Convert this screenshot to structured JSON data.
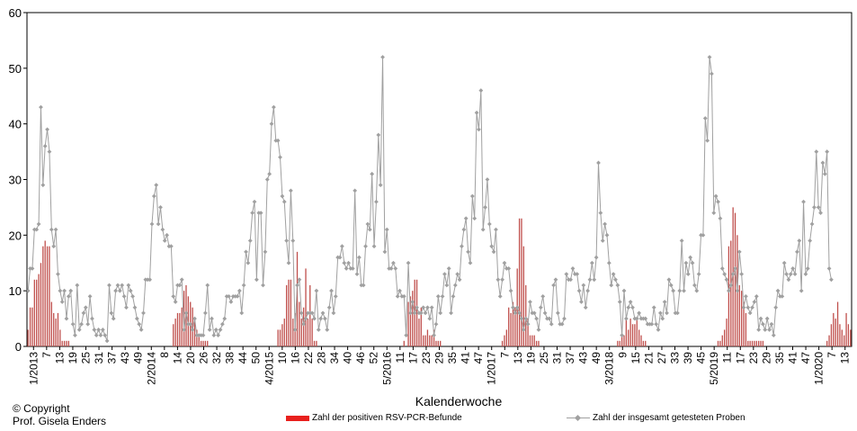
{
  "chart_data": {
    "type": "bar+line",
    "xlabel": "Kalenderwoche",
    "ylabel": "",
    "ylim": [
      0,
      60
    ],
    "yticks": [
      0,
      10,
      20,
      30,
      40,
      50,
      60
    ],
    "x_tick_labels": [
      "1/2013",
      "7",
      "13",
      "19",
      "25",
      "31",
      "37",
      "43",
      "49",
      "2/2014",
      "8",
      "14",
      "20",
      "26",
      "32",
      "38",
      "44",
      "50",
      "4/2015",
      "10",
      "16",
      "22",
      "28",
      "34",
      "40",
      "46",
      "52",
      "5/2016",
      "11",
      "17",
      "23",
      "29",
      "35",
      "41",
      "47",
      "1/2017",
      "7",
      "13",
      "19",
      "25",
      "31",
      "37",
      "43",
      "49",
      "3/2018",
      "9",
      "15",
      "21",
      "27",
      "33",
      "39",
      "45",
      "5/2019",
      "11",
      "17",
      "23",
      "29",
      "35",
      "41",
      "47",
      "1/2020",
      "7",
      "13"
    ],
    "grid": false,
    "legend_placement": "bottom",
    "series": [
      {
        "name": "Zahl der positiven RSV-PCR-Befunde",
        "type": "bar",
        "color": "#c0504d",
        "values": [
          3,
          7,
          7,
          12,
          12,
          13,
          15,
          18,
          19,
          18,
          18,
          8,
          6,
          5,
          6,
          3,
          1,
          1,
          1,
          1,
          0,
          0,
          0,
          0,
          0,
          0,
          0,
          0,
          0,
          0,
          0,
          0,
          0,
          0,
          0,
          0,
          0,
          0,
          0,
          0,
          0,
          0,
          0,
          0,
          0,
          0,
          0,
          0,
          0,
          0,
          0,
          0,
          0,
          0,
          0,
          0,
          0,
          0,
          0,
          0,
          0,
          0,
          0,
          0,
          0,
          0,
          0,
          0,
          4,
          5,
          6,
          6,
          7,
          10,
          11,
          9,
          8,
          7,
          5,
          3,
          2,
          1,
          1,
          1,
          1,
          0,
          0,
          0,
          0,
          0,
          0,
          0,
          0,
          0,
          0,
          0,
          0,
          0,
          0,
          0,
          0,
          0,
          0,
          0,
          0,
          0,
          0,
          0,
          0,
          0,
          0,
          0,
          0,
          0,
          0,
          0,
          0,
          3,
          3,
          4,
          5,
          11,
          12,
          12,
          5,
          6,
          17,
          8,
          5,
          7,
          14,
          5,
          11,
          5,
          1,
          1,
          0,
          0,
          0,
          0,
          0,
          0,
          0,
          0,
          0,
          0,
          0,
          0,
          0,
          0,
          0,
          0,
          0,
          0,
          0,
          0,
          0,
          0,
          0,
          0,
          0,
          0,
          0,
          0,
          0,
          0,
          0,
          0,
          0,
          0,
          0,
          0,
          0,
          0,
          0,
          0,
          1,
          0,
          8,
          9,
          10,
          12,
          12,
          5,
          7,
          2,
          2,
          3,
          2,
          2,
          3,
          1,
          1,
          1,
          0,
          0,
          0,
          0,
          0,
          0,
          0,
          0,
          0,
          0,
          0,
          0,
          0,
          0,
          0,
          0,
          0,
          0,
          0,
          0,
          0,
          0,
          0,
          0,
          0,
          0,
          0,
          0,
          1,
          2,
          3,
          7,
          6,
          8,
          7,
          14,
          23,
          23,
          18,
          11,
          5,
          2,
          2,
          2,
          1,
          1,
          0,
          0,
          0,
          0,
          0,
          0,
          0,
          0,
          0,
          0,
          0,
          0,
          0,
          0,
          0,
          0,
          0,
          0,
          0,
          0,
          0,
          0,
          0,
          0,
          0,
          0,
          0,
          0,
          0,
          0,
          0,
          0,
          0,
          0,
          0,
          0,
          1,
          1,
          2,
          2,
          5,
          3,
          5,
          4,
          4,
          5,
          3,
          2,
          1,
          1,
          0,
          0,
          0,
          0,
          0,
          0,
          0,
          0,
          0,
          0,
          0,
          0,
          0,
          0,
          0,
          0,
          0,
          0,
          0,
          0,
          0,
          0,
          0,
          0,
          0,
          0,
          0,
          0,
          0,
          0,
          0,
          0,
          0,
          1,
          1,
          2,
          3,
          5,
          18,
          19,
          25,
          24,
          20,
          11,
          10,
          8,
          6,
          1,
          1,
          1,
          1,
          1,
          1,
          1,
          1,
          0,
          0,
          0,
          0,
          0,
          0,
          0,
          0,
          0,
          0,
          0,
          0,
          0,
          0,
          0,
          0,
          0,
          0,
          0,
          0,
          0,
          0,
          0,
          0,
          0,
          0,
          0,
          0,
          0,
          1,
          2,
          4,
          6,
          5,
          8,
          4,
          3,
          2,
          6,
          4,
          3
        ]
      },
      {
        "name": "Zahl der insgesamt getesteten Proben",
        "type": "line",
        "color": "#a0a0a0",
        "values": [
          10,
          14,
          14,
          21,
          21,
          22,
          43,
          29,
          36,
          39,
          35,
          21,
          18,
          21,
          13,
          10,
          8,
          10,
          5,
          9,
          10,
          4,
          2,
          11,
          3,
          4,
          6,
          7,
          4,
          9,
          5,
          3,
          2,
          3,
          2,
          3,
          2,
          1,
          11,
          6,
          5,
          10,
          11,
          10,
          11,
          9,
          7,
          11,
          10,
          9,
          7,
          5,
          4,
          3,
          6,
          12,
          12,
          12,
          22,
          27,
          29,
          22,
          25,
          21,
          19,
          20,
          18,
          18,
          9,
          8,
          11,
          11,
          12,
          3,
          6,
          4,
          4,
          3,
          5,
          2,
          2,
          2,
          2,
          6,
          11,
          3,
          5,
          2,
          3,
          2,
          3,
          4,
          5,
          9,
          9,
          8,
          9,
          9,
          9,
          10,
          6,
          11,
          17,
          15,
          19,
          24,
          26,
          12,
          24,
          24,
          11,
          17,
          30,
          31,
          40,
          43,
          37,
          37,
          34,
          27,
          26,
          19,
          15,
          28,
          19,
          3,
          11,
          12,
          6,
          4,
          5,
          6,
          6,
          6,
          5,
          10,
          3,
          5,
          6,
          5,
          3,
          7,
          10,
          6,
          9,
          16,
          16,
          18,
          15,
          14,
          15,
          14,
          14,
          28,
          13,
          16,
          11,
          11,
          18,
          22,
          21,
          31,
          18,
          26,
          38,
          29,
          52,
          17,
          21,
          14,
          14,
          15,
          14,
          9,
          10,
          9,
          9,
          2,
          15,
          6,
          8,
          6,
          7,
          6,
          6,
          7,
          6,
          7,
          5,
          7,
          2,
          4,
          9,
          6,
          9,
          13,
          11,
          14,
          6,
          9,
          11,
          13,
          12,
          18,
          21,
          23,
          17,
          15,
          27,
          23,
          42,
          39,
          46,
          21,
          25,
          30,
          22,
          18,
          17,
          21,
          12,
          9,
          12,
          15,
          14,
          14,
          10,
          7,
          6,
          7,
          6,
          5,
          3,
          5,
          4,
          8,
          6,
          6,
          5,
          3,
          7,
          9,
          6,
          5,
          5,
          4,
          11,
          12,
          6,
          4,
          4,
          5,
          13,
          12,
          12,
          14,
          13,
          13,
          10,
          8,
          11,
          7,
          10,
          12,
          15,
          12,
          16,
          33,
          24,
          19,
          22,
          20,
          15,
          11,
          13,
          12,
          11,
          8,
          2,
          10,
          5,
          7,
          8,
          7,
          5,
          5,
          6,
          5,
          5,
          5,
          4,
          4,
          4,
          7,
          4,
          3,
          6,
          5,
          8,
          6,
          12,
          11,
          10,
          6,
          6,
          10,
          19,
          10,
          15,
          13,
          16,
          15,
          11,
          10,
          13,
          20,
          20,
          41,
          37,
          52,
          49,
          24,
          27,
          26,
          23,
          14,
          13,
          12,
          10,
          11,
          13,
          14,
          10,
          17,
          13,
          7,
          9,
          7,
          6,
          7,
          8,
          9,
          3,
          5,
          4,
          3,
          5,
          3,
          4,
          2,
          7,
          10,
          9,
          9,
          15,
          13,
          12,
          13,
          14,
          13,
          17,
          19,
          10,
          26,
          13,
          14,
          19,
          22,
          25,
          35,
          25,
          24,
          33,
          31,
          35,
          14,
          12
        ]
      }
    ]
  },
  "copyright": {
    "line1": "© Copyright",
    "line2": "Prof. Gisela Enders"
  }
}
